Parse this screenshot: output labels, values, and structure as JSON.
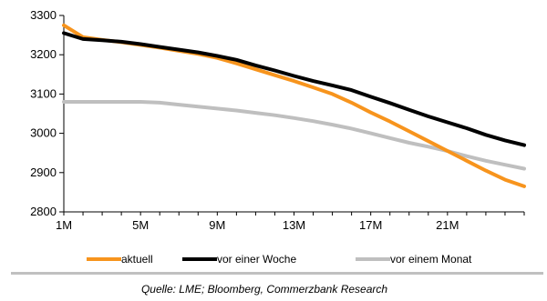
{
  "chart_data": {
    "type": "line",
    "title": "",
    "xlabel": "",
    "ylabel": "",
    "x_tick_labels": [
      "1M",
      "5M",
      "9M",
      "13M",
      "17M",
      "21M"
    ],
    "x_range": [
      1,
      25
    ],
    "ylim": [
      2800,
      3300
    ],
    "yticks": [
      2800,
      2900,
      3000,
      3100,
      3200,
      3300
    ],
    "grid": false,
    "legend_position": "bottom",
    "x": [
      1,
      2,
      3,
      4,
      5,
      6,
      7,
      8,
      9,
      10,
      11,
      12,
      13,
      14,
      15,
      16,
      17,
      18,
      19,
      20,
      21,
      22,
      23,
      24,
      25
    ],
    "series": [
      {
        "name": "aktuell",
        "color": "#f7941d",
        "values": [
          3275,
          3245,
          3238,
          3232,
          3225,
          3218,
          3210,
          3202,
          3192,
          3178,
          3163,
          3148,
          3133,
          3117,
          3100,
          3078,
          3053,
          3030,
          3005,
          2980,
          2955,
          2930,
          2905,
          2882,
          2865
        ]
      },
      {
        "name": "vor einer Woche",
        "color": "#000000",
        "values": [
          3255,
          3240,
          3237,
          3233,
          3227,
          3220,
          3213,
          3206,
          3197,
          3187,
          3173,
          3160,
          3146,
          3133,
          3122,
          3110,
          3093,
          3077,
          3060,
          3043,
          3028,
          3013,
          2996,
          2982,
          2970
        ]
      },
      {
        "name": "vor einem Monat",
        "color": "#bfbfbf",
        "values": [
          3080,
          3080,
          3080,
          3080,
          3080,
          3078,
          3073,
          3068,
          3063,
          3058,
          3052,
          3046,
          3039,
          3031,
          3022,
          3012,
          3000,
          2988,
          2976,
          2966,
          2955,
          2942,
          2930,
          2920,
          2910
        ]
      }
    ]
  },
  "source": "Quelle: LME; Bloomberg, Commerzbank Research"
}
